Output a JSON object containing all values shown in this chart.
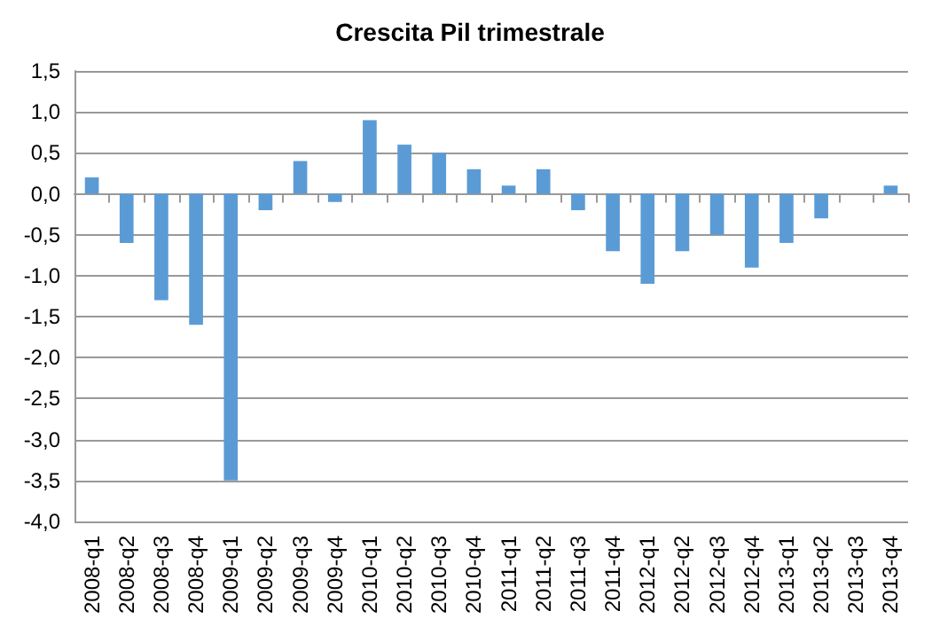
{
  "chart_data": {
    "type": "bar",
    "title": "Crescita Pil trimestrale",
    "categories": [
      "2008-q1",
      "2008-q2",
      "2008-q3",
      "2008-q4",
      "2009-q1",
      "2009-q2",
      "2009-q3",
      "2009-q4",
      "2010-q1",
      "2010-q2",
      "2010-q3",
      "2010-q4",
      "2011-q1",
      "2011-q2",
      "2011-q3",
      "2011-q4",
      "2012-q1",
      "2012-q2",
      "2012-q3",
      "2012-q4",
      "2013-q1",
      "2013-q2",
      "2013-q3",
      "2013-q4"
    ],
    "values": [
      0.2,
      -0.6,
      -1.3,
      -1.6,
      -3.5,
      -0.2,
      0.4,
      -0.1,
      0.9,
      0.6,
      0.5,
      0.3,
      0.1,
      0.3,
      -0.2,
      -0.7,
      -1.1,
      -0.7,
      -0.5,
      -0.9,
      -0.6,
      -0.3,
      0.0,
      0.1
    ],
    "color": "#5b9bd5",
    "ylim": [
      -4,
      1.5
    ],
    "yticks": [
      {
        "value": -4,
        "label": "-4,0"
      },
      {
        "value": -3.5,
        "label": "-3,5"
      },
      {
        "value": -3,
        "label": "-3,0"
      },
      {
        "value": -2.5,
        "label": "-2,5"
      },
      {
        "value": -2,
        "label": "-2,0"
      },
      {
        "value": -1.5,
        "label": "-1,5"
      },
      {
        "value": -1,
        "label": "-1,0"
      },
      {
        "value": -0.5,
        "label": "-0,5"
      },
      {
        "value": 0,
        "label": "0,0"
      },
      {
        "value": 0.5,
        "label": "0,5"
      },
      {
        "value": 1,
        "label": "1,0"
      },
      {
        "value": 1.5,
        "label": "1,5"
      }
    ],
    "grid": "y"
  }
}
